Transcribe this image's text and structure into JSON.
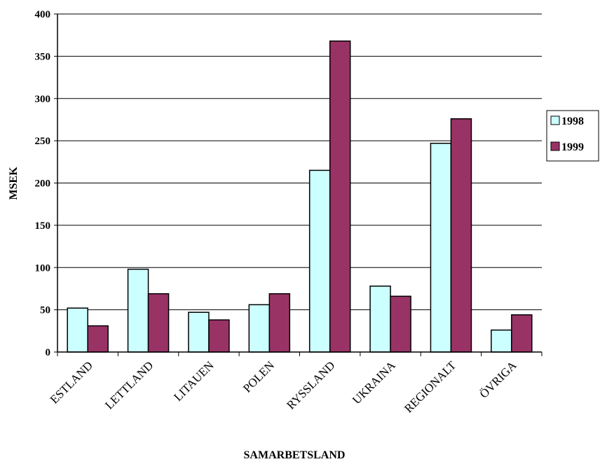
{
  "chart_data": {
    "type": "bar",
    "title": "",
    "xlabel": "SAMARBETSLAND",
    "ylabel": "MSEK",
    "ylim": [
      0,
      400
    ],
    "yticks": [
      0,
      50,
      100,
      150,
      200,
      250,
      300,
      350,
      400
    ],
    "grid": true,
    "legend_position": "right",
    "categories": [
      "ESTLAND",
      "LETTLAND",
      "LITAUEN",
      "POLEN",
      "RYSSLAND",
      "UKRAINA",
      "REGIONALT",
      "ÖVRIGA"
    ],
    "series": [
      {
        "name": "1998",
        "color": "#ccffff",
        "values": [
          52,
          98,
          47,
          56,
          215,
          78,
          247,
          26
        ]
      },
      {
        "name": "1999",
        "color": "#993366",
        "values": [
          31,
          69,
          38,
          69,
          368,
          66,
          276,
          44
        ]
      }
    ]
  }
}
